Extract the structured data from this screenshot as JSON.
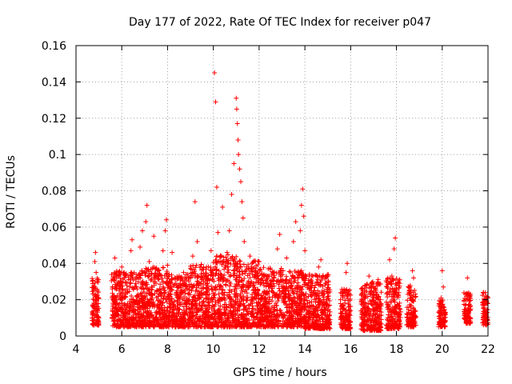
{
  "chart_data": {
    "type": "scatter",
    "title": "Day 177 of 2022, Rate Of TEC Index for receiver p047",
    "xlabel": "GPS time / hours",
    "ylabel": "ROTI / TECUs",
    "xlim": [
      4,
      22
    ],
    "ylim": [
      0,
      0.16
    ],
    "x_ticks": [
      4,
      6,
      8,
      10,
      12,
      14,
      16,
      18,
      20,
      22
    ],
    "x_tick_labels": [
      "4",
      "6",
      "8",
      "10",
      "12",
      "14",
      "16",
      "18",
      "20",
      "22"
    ],
    "y_ticks": [
      0,
      0.02,
      0.04,
      0.06,
      0.08,
      0.1,
      0.12,
      0.14,
      0.16
    ],
    "y_tick_labels": [
      "0",
      "0.02",
      "0.04",
      "0.06",
      "0.08",
      "0.1",
      "0.12",
      "0.14",
      "0.16"
    ],
    "grid": true,
    "marker": "+",
    "series": [
      {
        "name": "ROTI",
        "color": "#ff0000",
        "points": [
          [
            4.75,
            0.012
          ],
          [
            4.78,
            0.018
          ],
          [
            4.8,
            0.027
          ],
          [
            4.82,
            0.041
          ],
          [
            4.85,
            0.046
          ],
          [
            4.88,
            0.035
          ],
          [
            4.9,
            0.022
          ],
          [
            4.93,
            0.015
          ],
          [
            4.95,
            0.009
          ],
          [
            4.98,
            0.031
          ],
          [
            5.6,
            0.014
          ],
          [
            5.65,
            0.022
          ],
          [
            5.7,
            0.043
          ],
          [
            5.75,
            0.012
          ],
          [
            5.8,
            0.018
          ],
          [
            5.85,
            0.028
          ],
          [
            5.9,
            0.009
          ],
          [
            5.95,
            0.016
          ],
          [
            6.0,
            0.038
          ],
          [
            6.05,
            0.021
          ],
          [
            6.1,
            0.012
          ],
          [
            6.15,
            0.025
          ],
          [
            6.2,
            0.017
          ],
          [
            6.3,
            0.031
          ],
          [
            6.4,
            0.047
          ],
          [
            6.45,
            0.053
          ],
          [
            6.5,
            0.026
          ],
          [
            6.6,
            0.014
          ],
          [
            6.7,
            0.022
          ],
          [
            6.8,
            0.049
          ],
          [
            6.9,
            0.058
          ],
          [
            7.0,
            0.035
          ],
          [
            7.05,
            0.063
          ],
          [
            7.1,
            0.072
          ],
          [
            7.15,
            0.018
          ],
          [
            7.2,
            0.041
          ],
          [
            7.3,
            0.027
          ],
          [
            7.4,
            0.055
          ],
          [
            7.5,
            0.013
          ],
          [
            7.6,
            0.033
          ],
          [
            7.7,
            0.024
          ],
          [
            7.8,
            0.047
          ],
          [
            7.9,
            0.058
          ],
          [
            7.95,
            0.064
          ],
          [
            8.0,
            0.039
          ],
          [
            8.1,
            0.022
          ],
          [
            8.2,
            0.046
          ],
          [
            8.3,
            0.016
          ],
          [
            8.5,
            0.028
          ],
          [
            8.7,
            0.035
          ],
          [
            8.9,
            0.019
          ],
          [
            9.1,
            0.044
          ],
          [
            9.2,
            0.074
          ],
          [
            9.3,
            0.052
          ],
          [
            9.4,
            0.021
          ],
          [
            9.5,
            0.031
          ],
          [
            9.6,
            0.017
          ],
          [
            9.7,
            0.038
          ],
          [
            9.8,
            0.026
          ],
          [
            9.9,
            0.047
          ],
          [
            10.0,
            0.033
          ],
          [
            10.05,
            0.145
          ],
          [
            10.1,
            0.129
          ],
          [
            10.15,
            0.082
          ],
          [
            10.2,
            0.057
          ],
          [
            10.3,
            0.041
          ],
          [
            10.4,
            0.071
          ],
          [
            10.5,
            0.024
          ],
          [
            10.6,
            0.046
          ],
          [
            10.7,
            0.058
          ],
          [
            10.8,
            0.078
          ],
          [
            10.9,
            0.095
          ],
          [
            11.0,
            0.131
          ],
          [
            11.02,
            0.125
          ],
          [
            11.05,
            0.117
          ],
          [
            11.08,
            0.108
          ],
          [
            11.1,
            0.1
          ],
          [
            11.15,
            0.092
          ],
          [
            11.2,
            0.085
          ],
          [
            11.25,
            0.074
          ],
          [
            11.3,
            0.065
          ],
          [
            11.35,
            0.052
          ],
          [
            11.4,
            0.036
          ],
          [
            11.5,
            0.027
          ],
          [
            11.6,
            0.044
          ],
          [
            11.7,
            0.018
          ],
          [
            11.8,
            0.033
          ],
          [
            11.9,
            0.022
          ],
          [
            12.0,
            0.041
          ],
          [
            12.1,
            0.015
          ],
          [
            12.2,
            0.029
          ],
          [
            12.4,
            0.037
          ],
          [
            12.6,
            0.024
          ],
          [
            12.8,
            0.048
          ],
          [
            12.9,
            0.056
          ],
          [
            13.0,
            0.031
          ],
          [
            13.1,
            0.019
          ],
          [
            13.2,
            0.043
          ],
          [
            13.4,
            0.027
          ],
          [
            13.5,
            0.052
          ],
          [
            13.6,
            0.063
          ],
          [
            13.7,
            0.035
          ],
          [
            13.8,
            0.058
          ],
          [
            13.85,
            0.072
          ],
          [
            13.9,
            0.081
          ],
          [
            13.95,
            0.066
          ],
          [
            14.0,
            0.047
          ],
          [
            14.1,
            0.028
          ],
          [
            14.2,
            0.034
          ],
          [
            14.3,
            0.017
          ],
          [
            14.4,
            0.025
          ],
          [
            14.5,
            0.021
          ],
          [
            14.6,
            0.038
          ],
          [
            14.7,
            0.042
          ],
          [
            14.8,
            0.013
          ],
          [
            14.9,
            0.029
          ],
          [
            15.0,
            0.033
          ],
          [
            15.05,
            0.011
          ],
          [
            15.6,
            0.011
          ],
          [
            15.7,
            0.024
          ],
          [
            15.8,
            0.035
          ],
          [
            15.85,
            0.04
          ],
          [
            15.9,
            0.016
          ],
          [
            15.95,
            0.008
          ],
          [
            16.5,
            0.013
          ],
          [
            16.6,
            0.021
          ],
          [
            16.7,
            0.028
          ],
          [
            16.8,
            0.033
          ],
          [
            16.9,
            0.018
          ],
          [
            17.0,
            0.008
          ],
          [
            17.1,
            0.024
          ],
          [
            17.2,
            0.031
          ],
          [
            17.3,
            0.015
          ],
          [
            17.6,
            0.027
          ],
          [
            17.7,
            0.042
          ],
          [
            17.8,
            0.033
          ],
          [
            17.9,
            0.048
          ],
          [
            17.95,
            0.054
          ],
          [
            18.0,
            0.028
          ],
          [
            18.1,
            0.012
          ],
          [
            18.5,
            0.009
          ],
          [
            18.6,
            0.021
          ],
          [
            18.7,
            0.036
          ],
          [
            18.75,
            0.032
          ],
          [
            18.8,
            0.014
          ],
          [
            19.9,
            0.011
          ],
          [
            19.95,
            0.021
          ],
          [
            20.0,
            0.036
          ],
          [
            20.05,
            0.027
          ],
          [
            20.1,
            0.008
          ],
          [
            21.0,
            0.012
          ],
          [
            21.05,
            0.022
          ],
          [
            21.1,
            0.032
          ],
          [
            21.15,
            0.017
          ],
          [
            21.2,
            0.01
          ],
          [
            21.8,
            0.024
          ],
          [
            21.85,
            0.019
          ],
          [
            21.9,
            0.013
          ],
          [
            21.95,
            0.009
          ],
          [
            22.0,
            0.021
          ]
        ]
      }
    ],
    "clusters": [
      {
        "x": [
          4.7,
          5.0
        ],
        "y": [
          0.006,
          0.032
        ]
      },
      {
        "x": [
          5.55,
          6.0
        ],
        "y": [
          0.005,
          0.036
        ]
      },
      {
        "x": [
          6.0,
          7.0
        ],
        "y": [
          0.005,
          0.036
        ]
      },
      {
        "x": [
          7.0,
          8.0
        ],
        "y": [
          0.005,
          0.038
        ]
      },
      {
        "x": [
          8.0,
          9.0
        ],
        "y": [
          0.005,
          0.034
        ]
      },
      {
        "x": [
          9.0,
          10.0
        ],
        "y": [
          0.005,
          0.04
        ]
      },
      {
        "x": [
          10.0,
          11.0
        ],
        "y": [
          0.005,
          0.045
        ]
      },
      {
        "x": [
          11.0,
          12.0
        ],
        "y": [
          0.005,
          0.042
        ]
      },
      {
        "x": [
          12.0,
          13.0
        ],
        "y": [
          0.005,
          0.038
        ]
      },
      {
        "x": [
          13.0,
          14.0
        ],
        "y": [
          0.005,
          0.036
        ]
      },
      {
        "x": [
          14.0,
          15.1
        ],
        "y": [
          0.004,
          0.034
        ]
      },
      {
        "x": [
          15.55,
          16.0
        ],
        "y": [
          0.004,
          0.026
        ]
      },
      {
        "x": [
          16.45,
          17.35
        ],
        "y": [
          0.003,
          0.03
        ]
      },
      {
        "x": [
          17.55,
          18.2
        ],
        "y": [
          0.004,
          0.032
        ]
      },
      {
        "x": [
          18.45,
          18.85
        ],
        "y": [
          0.005,
          0.028
        ]
      },
      {
        "x": [
          19.85,
          20.15
        ],
        "y": [
          0.005,
          0.02
        ]
      },
      {
        "x": [
          20.95,
          21.25
        ],
        "y": [
          0.007,
          0.024
        ]
      },
      {
        "x": [
          21.75,
          22.0
        ],
        "y": [
          0.006,
          0.024
        ]
      }
    ]
  }
}
